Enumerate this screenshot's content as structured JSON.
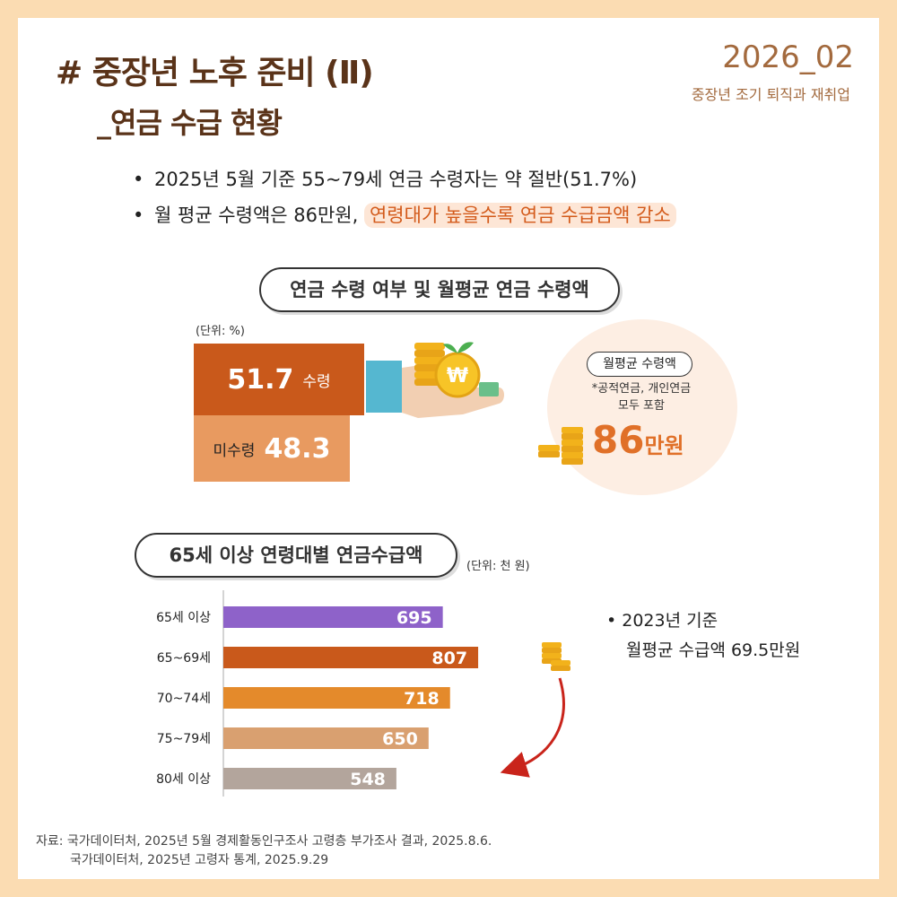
{
  "header": {
    "title_line1": "# 중장년 노후 준비 (Ⅱ)",
    "title_line2": "_연금 수급 현황",
    "issue": "2026_02",
    "issue_sub": "중장년 조기 퇴직과 재취업"
  },
  "bullets": {
    "b1": "2025년 5월 기준 55~79세 연금 수령자는 약 절반(51.7%)",
    "b2_prefix": "월 평균 수령액은 86만원, ",
    "b2_highlight": "연령대가 높을수록 연금 수급금액 감소"
  },
  "section1": {
    "title": "연금 수령 여부 및 월평균 연금 수령액",
    "unit": "(단위: %)",
    "received_value": "51.7",
    "received_label": "수령",
    "not_received_label": "미수령",
    "not_received_value": "48.3",
    "avg_pill": "월평균 수령액",
    "avg_note_line1": "*공적연금, 개인연금",
    "avg_note_line2": "모두 포함",
    "avg_amount": "86",
    "avg_unit": "만원"
  },
  "section2": {
    "title": "65세 이상 연령대별 연금수급액",
    "unit": "(단위: 천 원)",
    "note_line1": "2023년 기준",
    "note_line2": "월평균 수급액 69.5만원"
  },
  "source": {
    "line1": "자료: 국가데이터처, 2025년 5월 경제활동인구조사 고령층 부가조사 결과, 2025.8.6.",
    "line2": "국가데이터처, 2025년 고령자 통계, 2025.9.29"
  },
  "chart_data": [
    {
      "type": "bar",
      "orientation": "vertical-stacked",
      "title": "연금 수령 여부 및 월평균 연금 수령액",
      "unit": "%",
      "categories": [
        "수령",
        "미수령"
      ],
      "values": [
        51.7,
        48.3
      ],
      "colors": [
        "#c9591b",
        "#e89a60"
      ]
    },
    {
      "type": "bar",
      "orientation": "horizontal",
      "title": "65세 이상 연령대별 연금수급액",
      "unit": "천 원",
      "categories": [
        "65세 이상",
        "65~69세",
        "70~74세",
        "75~79세",
        "80세 이상"
      ],
      "values": [
        695,
        807,
        718,
        650,
        548
      ],
      "colors": [
        "#8e62c9",
        "#c9591b",
        "#e48a2b",
        "#d9a070",
        "#b3a59c"
      ],
      "xlim": [
        0,
        1100
      ]
    }
  ]
}
